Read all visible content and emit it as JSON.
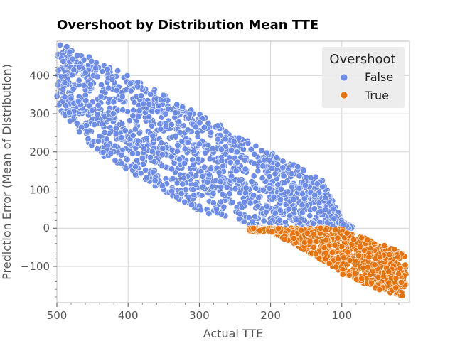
{
  "chart_data": {
    "type": "scatter",
    "title": "Overshoot by Distribution Mean TTE",
    "xlabel": "Actual TTE",
    "ylabel": "Prediction Error (Mean of Distribution)",
    "xlim": [
      500,
      5
    ],
    "ylim": [
      -195,
      490
    ],
    "x_reversed": true,
    "x_ticks": [
      500,
      400,
      300,
      200,
      100
    ],
    "y_ticks": [
      -100,
      0,
      100,
      200,
      300,
      400
    ],
    "grid": true,
    "legend": {
      "title": "Overshoot",
      "placement": "top-right"
    },
    "series": [
      {
        "name": "False",
        "color": "#6c8ce8",
        "description_of_region": "dense band; error decreases roughly linearly with decreasing actual TTE",
        "upper_edge": [
          [
            500,
            490
          ],
          [
            400,
            400
          ],
          [
            300,
            300
          ],
          [
            200,
            200
          ],
          [
            125,
            125
          ],
          [
            100,
            20
          ],
          [
            85,
            5
          ]
        ],
        "lower_edge": [
          [
            500,
            320
          ],
          [
            440,
            190
          ],
          [
            400,
            150
          ],
          [
            300,
            45
          ],
          [
            250,
            20
          ],
          [
            230,
            0
          ],
          [
            85,
            0
          ]
        ]
      },
      {
        "name": "True",
        "color": "#e8720c",
        "description_of_region": "band of negative errors for actual TTE below ~230",
        "upper_edge": [
          [
            230,
            0
          ],
          [
            100,
            0
          ],
          [
            50,
            -40
          ],
          [
            10,
            -60
          ]
        ],
        "lower_edge": [
          [
            200,
            -10
          ],
          [
            150,
            -60
          ],
          [
            100,
            -120
          ],
          [
            50,
            -160
          ],
          [
            10,
            -180
          ]
        ]
      }
    ]
  }
}
